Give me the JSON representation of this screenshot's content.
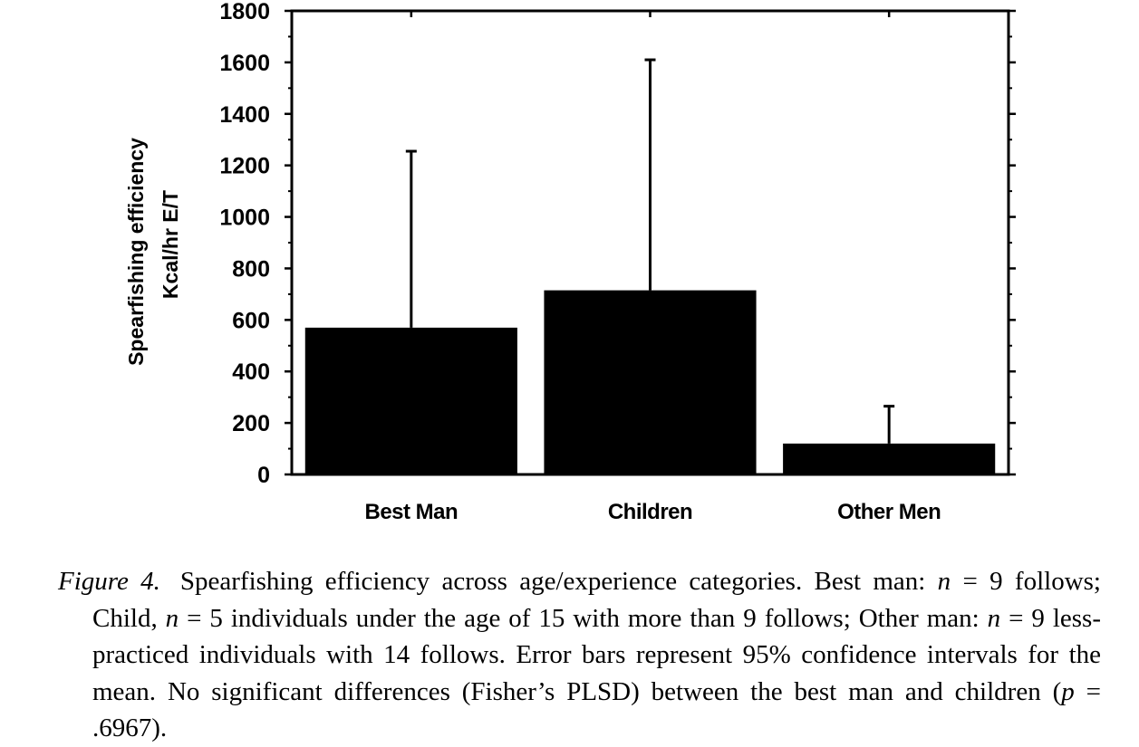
{
  "chart_data": {
    "type": "bar",
    "categories": [
      "Best Man",
      "Children",
      "Other Men"
    ],
    "series": [
      {
        "values": [
          570,
          715,
          120
        ],
        "error_upper": [
          1255,
          1610,
          265
        ]
      }
    ],
    "error_bars": "95% confidence intervals for the mean (upper whisker shown)",
    "ylabel_lines": [
      "Spearfishing efficiency",
      "Kcal/hr E/T"
    ],
    "yticks": [
      0,
      200,
      400,
      600,
      800,
      1000,
      1200,
      1400,
      1600,
      1800
    ],
    "ylim": [
      0,
      1800
    ],
    "grid": false,
    "bar_color": "#000000"
  },
  "caption": {
    "label": "Figure 4.",
    "segments": [
      {
        "text": "Spearfishing efficiency across age/experience categories. Best man: ",
        "italic": false
      },
      {
        "text": "n",
        "italic": true
      },
      {
        "text": " = 9 follows; Child, ",
        "italic": false
      },
      {
        "text": "n",
        "italic": true
      },
      {
        "text": " = 5 individuals under the age of 15 with more than 9 follows; Other man: ",
        "italic": false
      },
      {
        "text": "n",
        "italic": true
      },
      {
        "text": " = 9 less-practiced individuals with 14 follows. Error bars represent 95% confidence intervals for the mean. No significant differences (Fisher’s PLSD) between the best man and children (",
        "italic": false
      },
      {
        "text": "p",
        "italic": true
      },
      {
        "text": " = .6967).",
        "italic": false
      }
    ]
  }
}
